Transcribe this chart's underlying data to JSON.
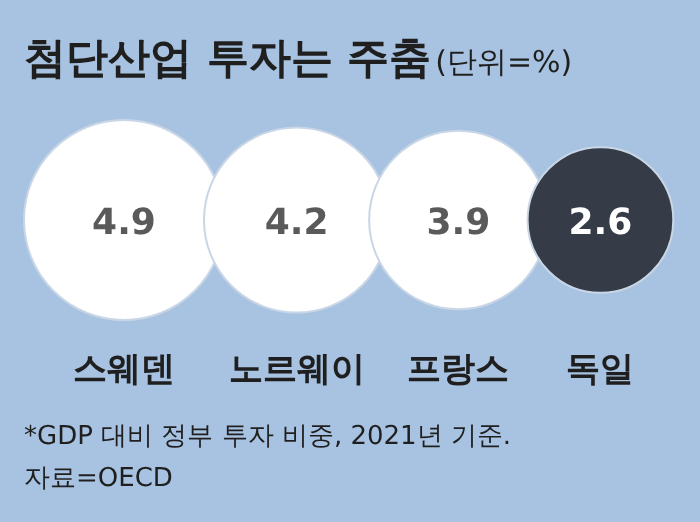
{
  "chart_data": {
    "type": "other",
    "title": "첨단산업 투자는 주춤",
    "subtitle": "(단위=%)",
    "categories": [
      "스웨덴",
      "노르웨이",
      "프랑스",
      "독일"
    ],
    "values": [
      4.9,
      4.2,
      3.9,
      2.6
    ],
    "colors": [
      "#ffffff",
      "#ffffff",
      "#ffffff",
      "#363c47"
    ],
    "data_labels": true,
    "annotations": [
      "*GDP 대비 정부 투자 비중, 2021년 기준.",
      "자료=OECD"
    ]
  }
}
